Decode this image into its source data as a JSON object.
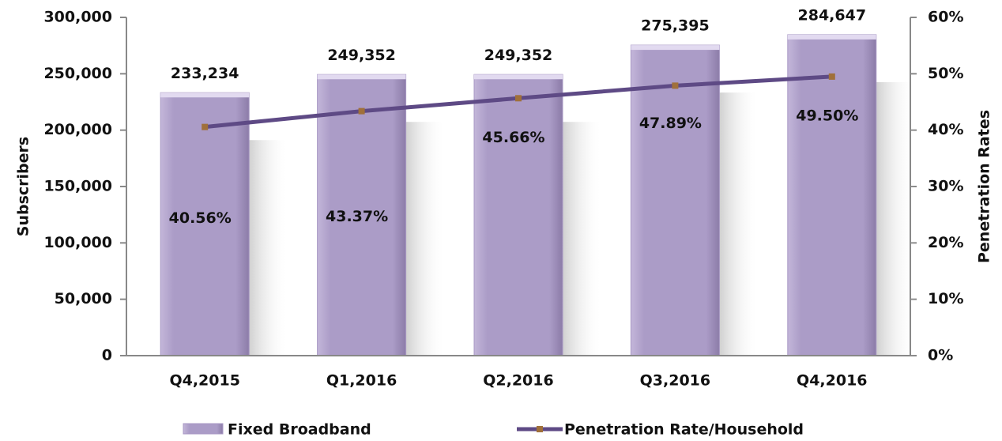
{
  "chart_data": {
    "type": "bar_line",
    "categories": [
      "Q4,2015",
      "Q1,2016",
      "Q2,2016",
      "Q3,2016",
      "Q4,2016"
    ],
    "series": [
      {
        "name": "Fixed Broadband",
        "color": "#a898c4",
        "values": [
          233234,
          249352,
          249352,
          275395,
          284647
        ],
        "value_labels": [
          "233,234",
          "249,352",
          "249,352",
          "275,395",
          "284,647"
        ]
      },
      {
        "name": "Penetration Rate/Household",
        "color": "#5e4a85",
        "axis": "y2",
        "values": [
          40.56,
          43.37,
          45.66,
          47.89,
          49.5
        ],
        "value_labels": [
          "40.56%",
          "43.37%",
          "45.66%",
          "47.89%",
          "49.50%"
        ]
      }
    ],
    "ylabel": "Subscribers",
    "y2label": "Penetration Rates",
    "ylim": [
      0,
      300000
    ],
    "yticks": [
      0,
      {
        "value": 50000,
        "label": "50,000"
      },
      {
        "value": 100000,
        "label": "100,000"
      },
      {
        "value": 150000,
        "label": "150,000"
      },
      {
        "value": 200000,
        "label": "200,000"
      },
      {
        "value": 250000,
        "label": "250,000"
      },
      {
        "value": 300000,
        "label": "300,000"
      }
    ],
    "y2lim": [
      0,
      60
    ],
    "y2ticks": [
      {
        "value": 0,
        "label": "0%"
      },
      {
        "value": 10,
        "label": "10%"
      },
      {
        "value": 20,
        "label": "20%"
      },
      {
        "value": 30,
        "label": "30%"
      },
      {
        "value": 40,
        "label": "40%"
      },
      {
        "value": 50,
        "label": "50%"
      },
      {
        "value": 60,
        "label": "60%"
      }
    ],
    "legend": "bottom"
  }
}
